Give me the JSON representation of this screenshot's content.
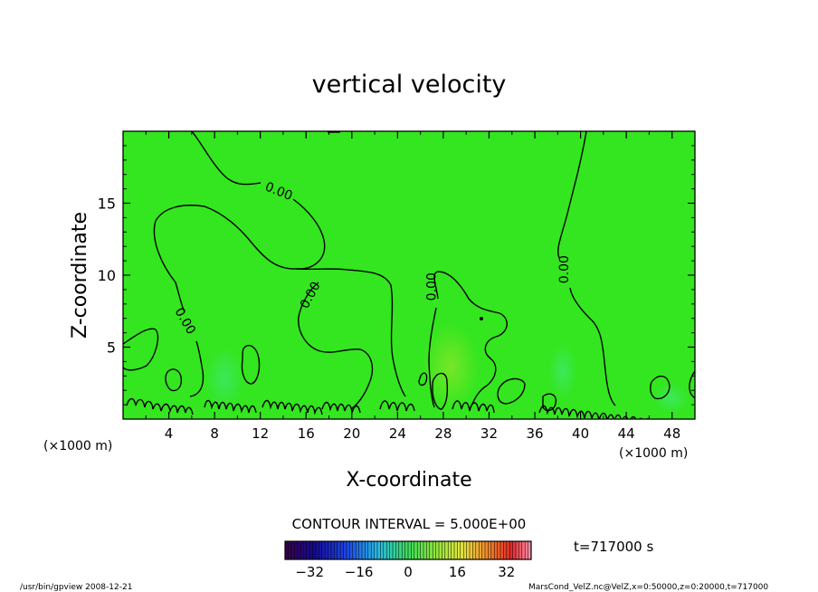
{
  "chart_data": {
    "type": "heatmap",
    "title": "vertical velocity",
    "xlabel": "X-coordinate",
    "ylabel": "Z-coordinate",
    "x_unit_left": "(×1000 m)",
    "x_unit_right": "(×1000 m)",
    "xlim": [
      0,
      50
    ],
    "ylim": [
      0,
      20
    ],
    "x_ticks": [
      "4",
      "8",
      "12",
      "16",
      "20",
      "24",
      "28",
      "32",
      "36",
      "40",
      "44",
      "48"
    ],
    "y_ticks": [
      "5",
      "10",
      "15"
    ],
    "grid": false,
    "contour_interval_text": "CONTOUR INTERVAL = 5.000E+00",
    "contour_labels": [
      {
        "text": "0.00",
        "x": 13.6,
        "z": 15.8,
        "angle": 22
      },
      {
        "text": "0.00",
        "x": 5.4,
        "z": 6.8,
        "angle": 60
      },
      {
        "text": "0.00",
        "x": 16.4,
        "z": 8.6,
        "angle": -62
      },
      {
        "text": "0.00",
        "x": 27.0,
        "z": 9.2,
        "angle": -90
      },
      {
        "text": "0.00",
        "x": 38.6,
        "z": 10.4,
        "angle": -90
      }
    ],
    "colorbar": {
      "min": -40,
      "max": 40,
      "ticks": [
        "-32",
        "-16",
        "0",
        "16",
        "32"
      ],
      "tick_values": [
        -32,
        -16,
        0,
        16,
        32
      ]
    },
    "time_label": "t=717000 s",
    "footer_left": "/usr/bin/gpview  2008-12-21",
    "footer_right": "MarsCond_VelZ.nc@VelZ,x=0:50000,z=0:20000,t=717000"
  }
}
